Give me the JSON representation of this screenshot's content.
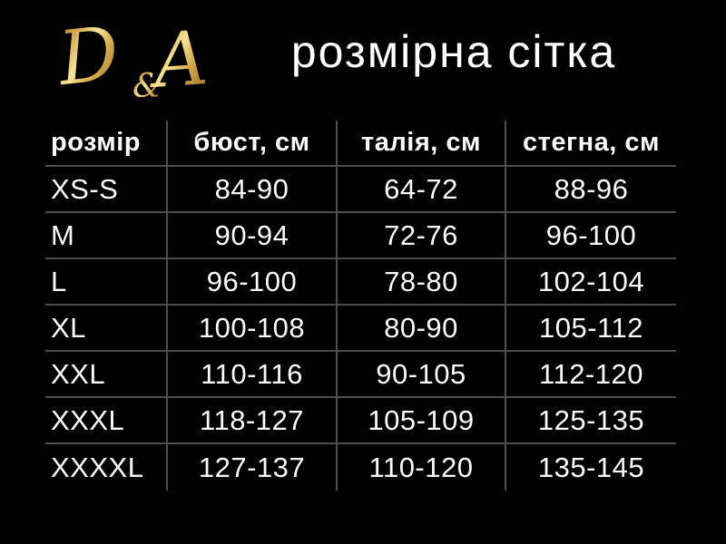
{
  "page": {
    "background": "#000000"
  },
  "header": {
    "logo": {
      "d": "D",
      "amp": "&",
      "a": "A",
      "gold_light": "#f7e391",
      "gold_mid": "#d2a64a",
      "gold_dark": "#8a5e16"
    },
    "title": "розмірна сітка"
  },
  "table_style": {
    "line_color": "#4d4d4d",
    "text_color": "#fafafa"
  },
  "chart_data": {
    "type": "table",
    "title": "розмірна сітка",
    "columns": [
      "розмір",
      "бюст, см",
      "талія, см",
      "стегна, см"
    ],
    "rows": [
      [
        "XS-S",
        "84-90",
        "64-72",
        "88-96"
      ],
      [
        "M",
        "90-94",
        "72-76",
        "96-100"
      ],
      [
        "L",
        "96-100",
        "78-80",
        "102-104"
      ],
      [
        "XL",
        "100-108",
        "80-90",
        "105-112"
      ],
      [
        "XXL",
        "110-116",
        "90-105",
        "112-120"
      ],
      [
        "XXXL",
        "118-127",
        "105-109",
        "125-135"
      ],
      [
        "XXXXL",
        "127-137",
        "110-120",
        "135-145"
      ]
    ]
  }
}
